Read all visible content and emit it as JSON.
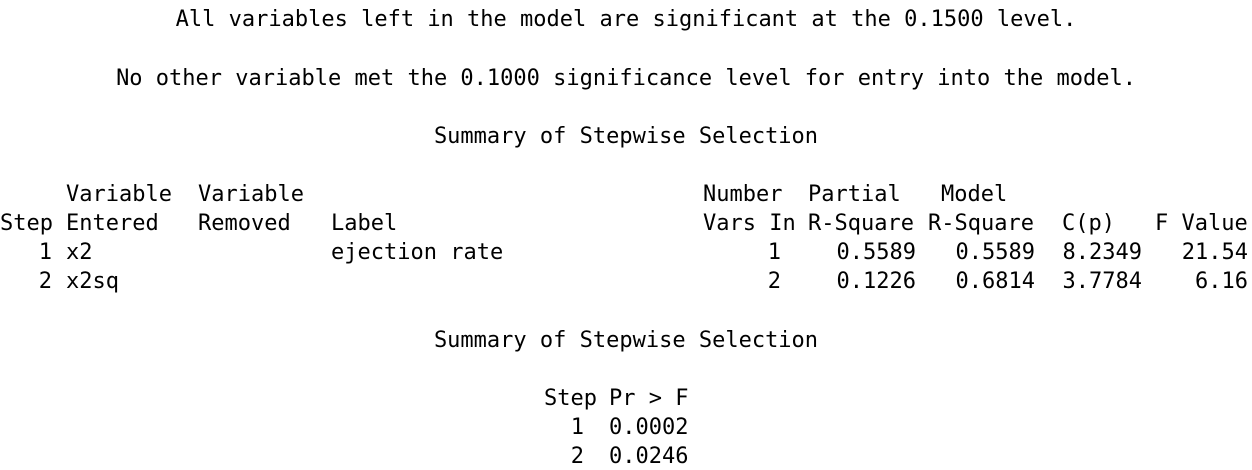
{
  "messages": {
    "significant": "All variables left in the model are significant at the 0.1500 level.",
    "no_other": "No other variable met the 0.1000 significance level for entry into the model."
  },
  "summary1": {
    "title": "Summary of Stepwise Selection",
    "header_row1": {
      "variable_a": "Variable",
      "variable_b": "Variable",
      "number": "Number",
      "partial": "Partial",
      "model": "Model"
    },
    "header_row2": {
      "step": "Step",
      "entered": "Entered",
      "removed": "Removed",
      "label": "Label",
      "vars_in": "Vars In",
      "r_square_partial": "R-Square",
      "r_square_model": "R-Square",
      "cp": "C(p)",
      "f_value": "F Value"
    },
    "rows": [
      {
        "step": "1",
        "entered": "x2",
        "removed": "",
        "label": "ejection rate",
        "vars_in": "1",
        "partial_r_square": "0.5589",
        "model_r_square": "0.5589",
        "cp": "8.2349",
        "f_value": "21.54"
      },
      {
        "step": "2",
        "entered": "x2sq",
        "removed": "",
        "label": "",
        "vars_in": "2",
        "partial_r_square": "0.1226",
        "model_r_square": "0.6814",
        "cp": "3.7784",
        "f_value": "6.16"
      }
    ]
  },
  "summary2": {
    "title": "Summary of Stepwise Selection",
    "header": {
      "step": "Step",
      "pr_f": "Pr > F"
    },
    "rows": [
      {
        "step": "1",
        "pr_f": "0.0002"
      },
      {
        "step": "2",
        "pr_f": "0.0246"
      }
    ]
  }
}
